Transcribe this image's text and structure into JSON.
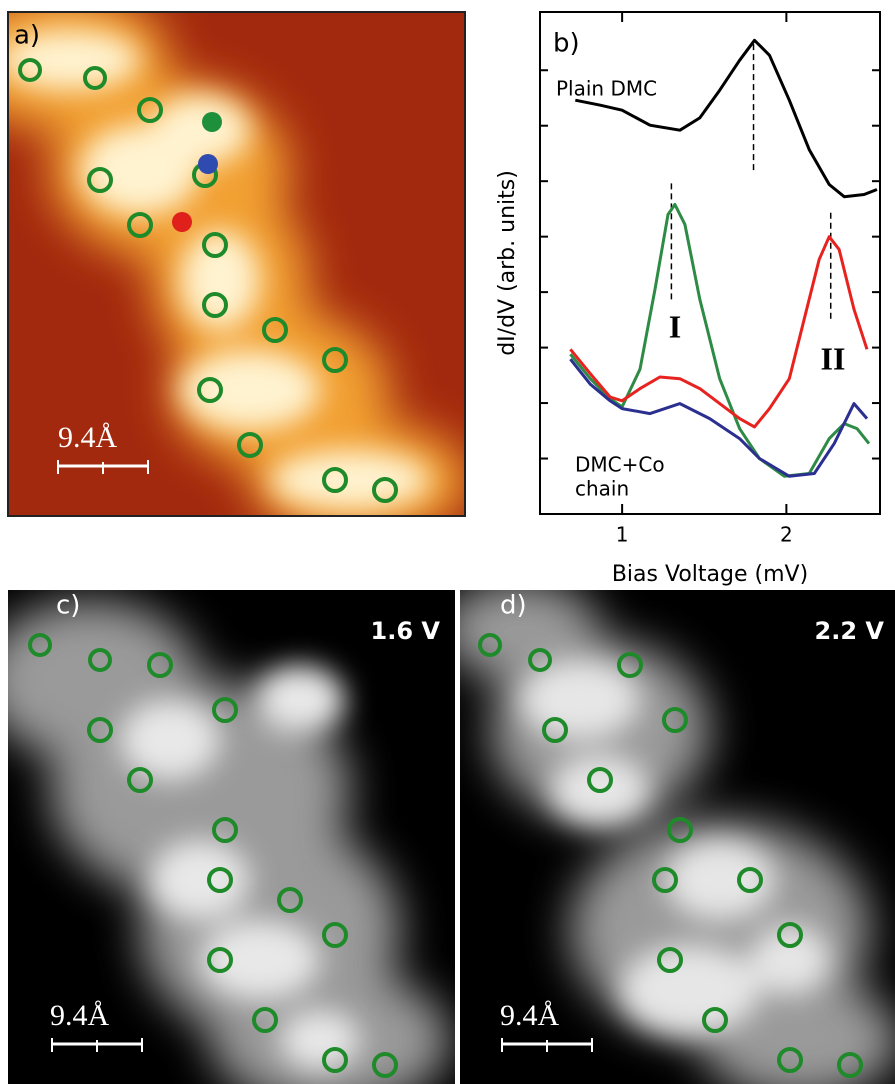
{
  "panels": {
    "a": {
      "label": "a)",
      "scale": "9.4Å"
    },
    "c": {
      "label": "c)",
      "scale": "9.4Å",
      "voltage": "1.6 V"
    },
    "d": {
      "label": "d)",
      "scale": "9.4Å",
      "voltage": "2.2 V"
    }
  },
  "chart_data": {
    "type": "line",
    "panel_label": "b)",
    "x_label": "Bias Voltage (mV)",
    "y_label": "dI/dV  (arb. units)",
    "xlim": [
      0.5,
      2.57
    ],
    "ylim": [
      0,
      9.05
    ],
    "xticks": [
      1,
      2
    ],
    "yticks": [
      1,
      2,
      3,
      4,
      5,
      6,
      7,
      8
    ],
    "annotations": [
      "Plain DMC",
      "I",
      "II",
      "DMC+Co",
      "chain"
    ],
    "vlines": [
      {
        "x": 1.8,
        "ymin": 6.2,
        "ymax": 8.54
      },
      {
        "x": 1.3,
        "ymin": 3.87,
        "ymax": 6.02
      },
      {
        "x": 2.27,
        "ymin": 3.52,
        "ymax": 5.46
      }
    ],
    "series": [
      {
        "color": "#000000",
        "x": [
          0.715,
          0.867,
          1.0,
          1.17,
          1.352,
          1.473,
          1.594,
          1.715,
          1.806,
          1.897,
          2.018,
          2.139,
          2.261,
          2.352,
          2.473,
          2.552
        ],
        "values": [
          7.46,
          7.37,
          7.28,
          7.01,
          6.92,
          7.14,
          7.64,
          8.18,
          8.54,
          8.27,
          7.46,
          6.57,
          5.94,
          5.72,
          5.76,
          5.85
        ]
      },
      {
        "color": "#2e8b45",
        "x": [
          0.685,
          0.806,
          0.927,
          1.0,
          1.109,
          1.2,
          1.279,
          1.321,
          1.382,
          1.473,
          1.594,
          1.715,
          1.836,
          1.988,
          2.139,
          2.261,
          2.352,
          2.43,
          2.503
        ],
        "values": [
          2.88,
          2.44,
          2.08,
          1.93,
          2.61,
          4.05,
          5.4,
          5.58,
          5.22,
          3.87,
          2.44,
          1.54,
          1.0,
          0.68,
          0.73,
          1.36,
          1.63,
          1.54,
          1.27
        ]
      },
      {
        "color": "#e8231f",
        "x": [
          0.685,
          0.806,
          0.927,
          1.0,
          1.109,
          1.23,
          1.352,
          1.473,
          1.594,
          1.715,
          1.806,
          1.897,
          2.018,
          2.109,
          2.2,
          2.261,
          2.321,
          2.412,
          2.491
        ],
        "values": [
          2.97,
          2.53,
          2.11,
          2.04,
          2.26,
          2.47,
          2.44,
          2.26,
          1.99,
          1.72,
          1.57,
          1.9,
          2.44,
          3.52,
          4.59,
          5.0,
          4.77,
          3.69,
          2.97
        ]
      },
      {
        "color": "#2b2f8f",
        "x": [
          0.685,
          0.806,
          0.927,
          1.0,
          1.17,
          1.352,
          1.533,
          1.715,
          1.836,
          2.018,
          2.17,
          2.291,
          2.412,
          2.491
        ],
        "values": [
          2.79,
          2.34,
          2.04,
          1.9,
          1.81,
          1.99,
          1.72,
          1.36,
          1.0,
          0.68,
          0.73,
          1.27,
          1.99,
          1.72
        ]
      }
    ]
  }
}
